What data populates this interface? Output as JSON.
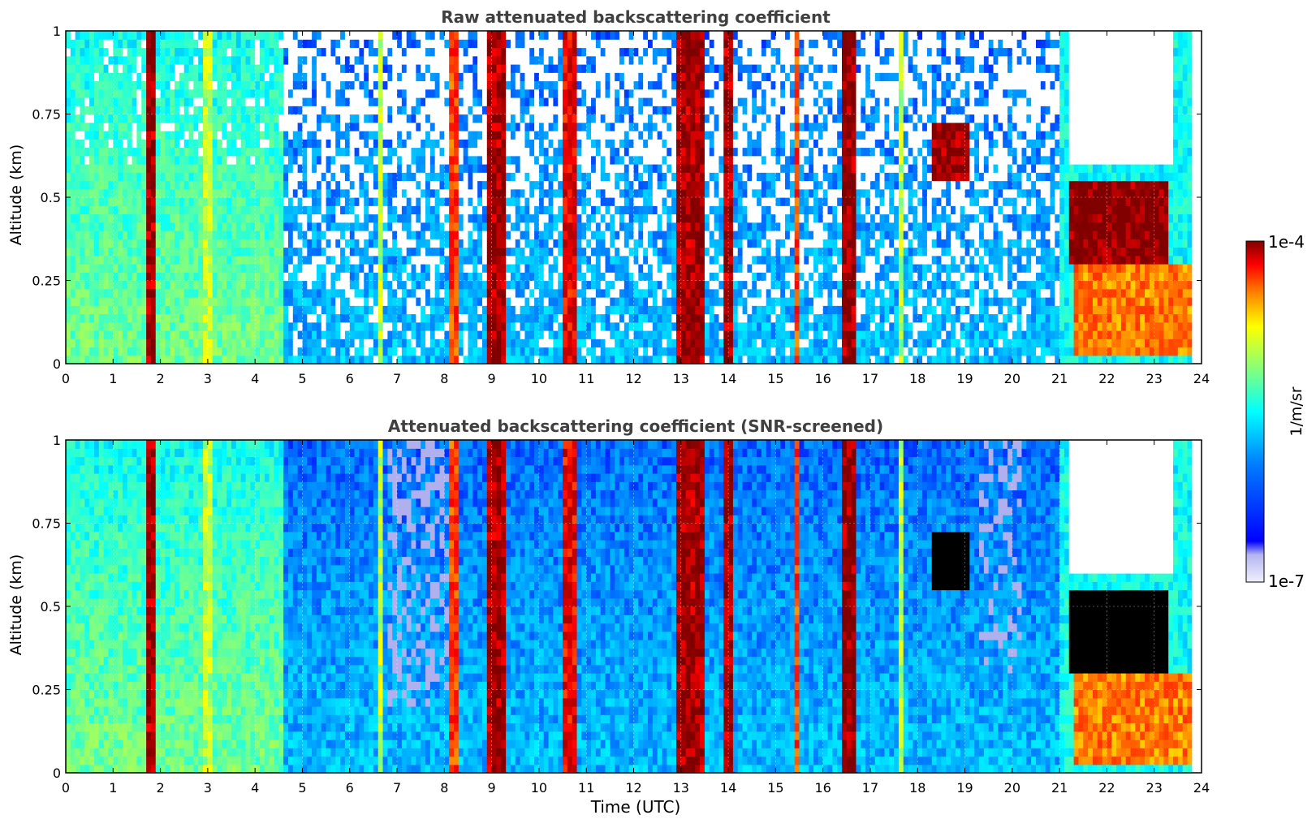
{
  "chart_data": [
    {
      "type": "heatmap",
      "title": "Raw attenuated backscattering coefficient",
      "ylabel": "Altitude (km)",
      "xlabel": "",
      "xlim": [
        0,
        24
      ],
      "ylim": [
        0,
        1
      ],
      "x_ticks": [
        "0",
        "1",
        "2",
        "3",
        "4",
        "5",
        "6",
        "7",
        "8",
        "9",
        "10",
        "11",
        "12",
        "13",
        "14",
        "15",
        "16",
        "17",
        "18",
        "19",
        "20",
        "21",
        "22",
        "23",
        "24"
      ],
      "y_ticks": [
        "0",
        "0.25",
        "0.5",
        "0.75",
        "1"
      ],
      "grid": true,
      "screened": false,
      "features": [
        {
          "kind": "column",
          "x0": 1.7,
          "x1": 1.9,
          "value": 8e-05
        },
        {
          "kind": "column",
          "x0": 2.85,
          "x1": 3.1,
          "value": 5e-06
        },
        {
          "kind": "column",
          "x0": 6.55,
          "x1": 6.65,
          "value": 5e-06
        },
        {
          "kind": "column",
          "x0": 8.1,
          "x1": 8.25,
          "value": 3e-05
        },
        {
          "kind": "column",
          "x0": 8.9,
          "x1": 9.3,
          "value": 8e-05
        },
        {
          "kind": "column",
          "x0": 10.55,
          "x1": 10.75,
          "value": 5e-05
        },
        {
          "kind": "column",
          "x0": 12.9,
          "x1": 13.5,
          "value": 8e-05
        },
        {
          "kind": "column",
          "x0": 13.9,
          "x1": 14.1,
          "value": 8e-05
        },
        {
          "kind": "column",
          "x0": 15.4,
          "x1": 15.5,
          "value": 3e-05
        },
        {
          "kind": "column",
          "x0": 16.4,
          "x1": 16.7,
          "value": 9e-05
        },
        {
          "kind": "column",
          "x0": 17.55,
          "x1": 17.7,
          "value": 5e-06
        },
        {
          "kind": "cloud",
          "x0": 18.3,
          "x1": 19.1,
          "y0": 0.55,
          "y1": 0.72,
          "value": 9e-05
        },
        {
          "kind": "cloud",
          "x0": 21.2,
          "x1": 23.3,
          "y0": 0.3,
          "y1": 0.55,
          "value": 0.0001
        },
        {
          "kind": "block",
          "x0": 21.3,
          "x1": 23.8,
          "y0": 0.02,
          "y1": 0.3,
          "value": 2e-05
        }
      ]
    },
    {
      "type": "heatmap",
      "title": "Attenuated backscattering coefficient (SNR-screened)",
      "ylabel": "Altitude (km)",
      "xlabel": "Time (UTC)",
      "xlim": [
        0,
        24
      ],
      "ylim": [
        0,
        1
      ],
      "x_ticks": [
        "0",
        "1",
        "2",
        "3",
        "4",
        "5",
        "6",
        "7",
        "8",
        "9",
        "10",
        "11",
        "12",
        "13",
        "14",
        "15",
        "16",
        "17",
        "18",
        "19",
        "20",
        "21",
        "22",
        "23",
        "24"
      ],
      "y_ticks": [
        "0",
        "0.25",
        "0.5",
        "0.75",
        "1"
      ],
      "grid": true,
      "screened": true,
      "features": [
        {
          "kind": "column",
          "x0": 1.7,
          "x1": 1.9,
          "value": 8e-05
        },
        {
          "kind": "column",
          "x0": 2.85,
          "x1": 3.1,
          "value": 5e-06
        },
        {
          "kind": "column",
          "x0": 6.55,
          "x1": 6.65,
          "value": 5e-06
        },
        {
          "kind": "column",
          "x0": 8.1,
          "x1": 8.25,
          "value": 3e-05
        },
        {
          "kind": "column",
          "x0": 8.9,
          "x1": 9.3,
          "value": 8e-05
        },
        {
          "kind": "column",
          "x0": 10.55,
          "x1": 10.75,
          "value": 5e-05
        },
        {
          "kind": "column",
          "x0": 12.9,
          "x1": 13.5,
          "value": 8e-05
        },
        {
          "kind": "column",
          "x0": 13.9,
          "x1": 14.1,
          "value": 8e-05
        },
        {
          "kind": "column",
          "x0": 15.4,
          "x1": 15.5,
          "value": 3e-05
        },
        {
          "kind": "column",
          "x0": 16.4,
          "x1": 16.7,
          "value": 9e-05
        },
        {
          "kind": "column",
          "x0": 17.55,
          "x1": 17.7,
          "value": 5e-06
        },
        {
          "kind": "cloud",
          "x0": 18.3,
          "x1": 19.1,
          "y0": 0.55,
          "y1": 0.72,
          "value": "saturated"
        },
        {
          "kind": "cloud",
          "x0": 21.2,
          "x1": 23.3,
          "y0": 0.3,
          "y1": 0.55,
          "value": "saturated"
        },
        {
          "kind": "block",
          "x0": 21.3,
          "x1": 23.8,
          "y0": 0.02,
          "y1": 0.3,
          "value": 2e-05
        }
      ]
    }
  ],
  "colorbar": {
    "label": "1/m/sr",
    "max_label": "1e-4",
    "min_label": "1e-7",
    "scale": "log",
    "range": [
      1e-07,
      0.0001
    ],
    "colormap": "jet",
    "colors": [
      "#f0f0ff",
      "#c8c8f5",
      "#0000ff",
      "#0080ff",
      "#00ffff",
      "#80ff80",
      "#ffff00",
      "#ff8000",
      "#ff0000",
      "#800000"
    ]
  }
}
